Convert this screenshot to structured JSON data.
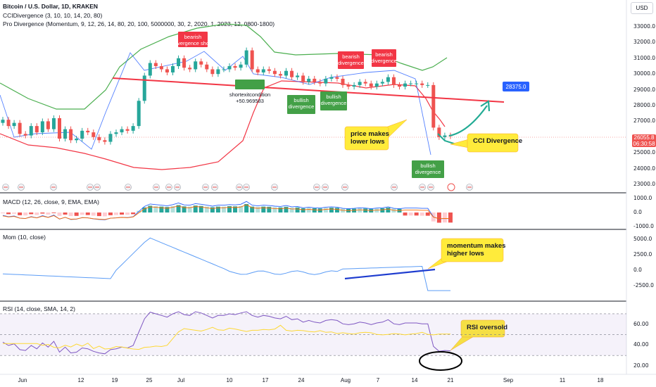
{
  "header": {
    "title": "Bitcoin / U.S. Dollar, 1D, KRAKEN",
    "ind1": "CCIDivergence (3, 10, 10, 14, 20, 80)",
    "ind2": "Pro Divergence (Momentum, 9, 12, 26, 14, 80, 20, 100, 5000000, 30, 2, 2020, 1, 2023, 12, 0800-1800)",
    "currency_button": "USD"
  },
  "panes": {
    "macd": "MACD (12, 26, close, 9, EMA, EMA)",
    "mom": "Mom (10, close)",
    "rsi": "RSI (14, close, SMA, 14, 2)"
  },
  "price_badge": {
    "price": "26055.8",
    "countdown": "06:30:58",
    "target": "28375.0"
  },
  "chart_data": [
    {
      "type": "candlestick",
      "title": "Bitcoin / U.S. Dollar, 1D, KRAKEN",
      "ylim": [
        23000,
        33500
      ],
      "yticks": [
        "33000.0",
        "32000.0",
        "31000.0",
        "30000.0",
        "29000.0",
        "28000.0",
        "27000.0",
        "26000.0",
        "25000.0",
        "24000.0",
        "23000.0"
      ],
      "xticks": [
        "Jun",
        "12",
        "19",
        "25",
        "Jul",
        "10",
        "17",
        "24",
        "Aug",
        "7",
        "14",
        "21",
        "Sep",
        "11",
        "18"
      ],
      "close": [
        27100,
        26700,
        26900,
        26200,
        26100,
        26700,
        26300,
        27000,
        26500,
        27200,
        25900,
        26500,
        25800,
        25900,
        26400,
        26300,
        26000,
        25800,
        25700,
        26200,
        26300,
        26500,
        26400,
        26700,
        28300,
        29900,
        30700,
        30500,
        30300,
        30100,
        30500,
        31000,
        30400,
        30300,
        30800,
        30600,
        30300,
        30000,
        30300,
        30300,
        30500,
        30400,
        30600,
        31500,
        30300,
        30100,
        30300,
        30200,
        30000,
        29900,
        30200,
        29800,
        29900,
        29500,
        29700,
        29500,
        29400,
        29700,
        29800,
        29700,
        29300,
        29200,
        29300,
        29500,
        29400,
        29200,
        29400,
        29500,
        29800,
        29300,
        29200,
        29400,
        29400,
        29400,
        29300,
        29300,
        26600,
        26000,
        26100,
        26055.8
      ]
    },
    {
      "type": "bar",
      "title": "MACD (12, 26, close, 9, EMA, EMA)",
      "ylim": [
        -1000,
        1300
      ],
      "yticks": [
        "1000.0",
        "0.0",
        "-1000.0"
      ]
    },
    {
      "type": "line",
      "title": "Mom (10, close)",
      "ylim": [
        -3500,
        6500
      ],
      "yticks": [
        "5000.0",
        "2500.0",
        "0.0",
        "-2500.0"
      ]
    },
    {
      "type": "line",
      "title": "RSI (14, close, SMA, 14, 2)",
      "ylim": [
        15,
        75
      ],
      "yticks": [
        "60.00",
        "40.00",
        "20.00"
      ]
    }
  ],
  "annotations": {
    "bearish_divergence": "bearish divergence",
    "bullish_divergence": "bullish divergence",
    "bearish_divergence_short": "bearish divergence short",
    "short_exit": "shortexitcondition",
    "short_exit_value": "+50.969583",
    "price_lower_lows": "price makes lower lows",
    "cci_divergence": "CCI Divergence",
    "momentum_higher_lows": "momentum makes higher lows",
    "rsi_oversold": "RSI oversold"
  },
  "colors": {
    "up": "#26a69a",
    "down": "#ef5350",
    "bb": "#4caf50",
    "red_line": "#f23645",
    "blue": "#2962ff",
    "yellow": "#ffeb3b"
  }
}
